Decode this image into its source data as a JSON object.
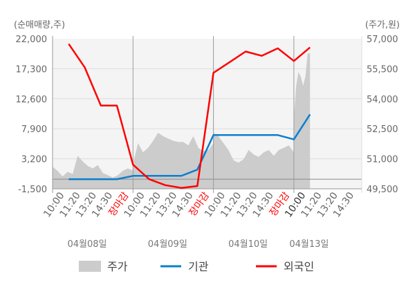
{
  "chart_data": {
    "type": "line",
    "left_axis_label": "(순매매량,주)",
    "right_axis_label": "(주가,원)",
    "left_ylim": [
      -1500,
      22000
    ],
    "left_ticks": [
      "22,000",
      "17,300",
      "12,600",
      "7,900",
      "3,200",
      "-1,500"
    ],
    "left_tick_values": [
      22000,
      17300,
      12600,
      7900,
      3200,
      -1500
    ],
    "right_ylim": [
      49500,
      57000
    ],
    "right_ticks": [
      "57,000",
      "55,500",
      "54,000",
      "52,500",
      "51,000",
      "49,500"
    ],
    "right_tick_values": [
      57000,
      55500,
      54000,
      52500,
      51000,
      49500
    ],
    "grid": true,
    "legend_position": "bottom",
    "days": [
      "04월08일",
      "04월09일",
      "04월10일",
      "04월13일"
    ],
    "slot_labels": [
      "10:00",
      "11:20",
      "13:20",
      "14:30",
      "장마감"
    ],
    "close_label_color": "#ff0000",
    "series": [
      {
        "name": "주가",
        "kind": "area",
        "axis": "right",
        "color": "#cccccc",
        "values_by_day": [
          [
            50600,
            50400,
            50120,
            50350,
            50240,
            51150,
            50870,
            50640,
            50520,
            50690,
            50290,
            50180,
            50060,
            50180,
            50410,
            50520,
            50410
          ],
          [
            50750,
            51780,
            51320,
            51550,
            51900,
            52300,
            52130,
            52010,
            51900,
            51840,
            51840,
            51670,
            52130,
            51550,
            51380,
            51440,
            51780
          ],
          [
            52300,
            52130,
            51780,
            51440,
            50920,
            50810,
            50980,
            51440,
            51210,
            51100,
            51320,
            51440,
            51150,
            51440,
            51550,
            51670,
            51320
          ],
          [
            53040,
            54650,
            55340,
            55110,
            54650,
            55110,
            56260,
            56260
          ]
        ]
      },
      {
        "name": "기관",
        "kind": "line",
        "axis": "left",
        "color": "#0a7fce",
        "values_by_day": [
          [
            0,
            0,
            0,
            0,
            530
          ],
          [
            530,
            530,
            530,
            1500,
            6910
          ],
          [
            6910,
            6910,
            6910,
            6910,
            6230
          ],
          [
            10150
          ]
        ]
      },
      {
        "name": "외국인",
        "kind": "line",
        "axis": "left",
        "color": "#ff0000",
        "values_by_day": [
          [
            21200,
            17520,
            11540,
            11540,
            2280
          ],
          [
            0,
            -930,
            -1360,
            -1070,
            16660
          ],
          [
            18330,
            20000,
            19330,
            20500,
            18510
          ],
          [
            20640
          ]
        ]
      }
    ]
  }
}
